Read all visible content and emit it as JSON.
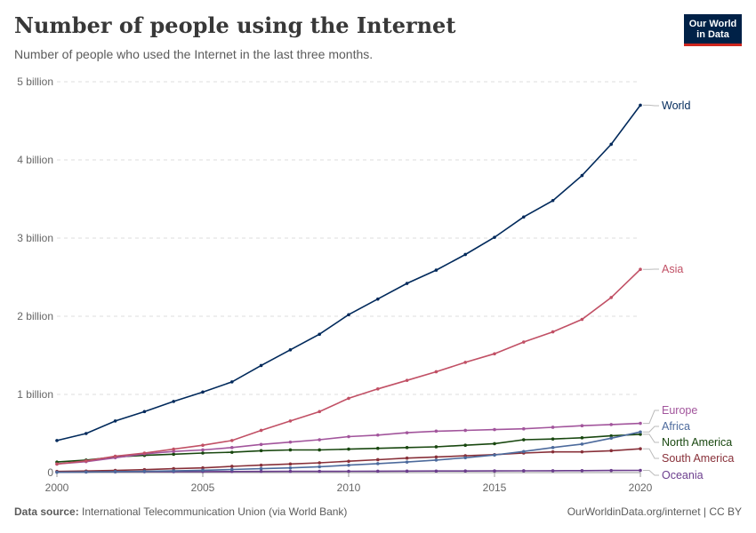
{
  "header": {
    "title": "Number of people using the Internet",
    "subtitle": "Number of people who used the Internet in the last three months."
  },
  "logo": {
    "line1": "Our World",
    "line2": "in Data"
  },
  "footer": {
    "source_label": "Data source:",
    "source_text": "International Telecommunication Union (via World Bank)",
    "right_text": "OurWorldinData.org/internet | CC BY"
  },
  "chart_data": {
    "type": "line",
    "title": "Number of people using the Internet",
    "subtitle": "Number of people who used the Internet in the last three months.",
    "x": [
      2000,
      2001,
      2002,
      2003,
      2004,
      2005,
      2006,
      2007,
      2008,
      2009,
      2010,
      2011,
      2012,
      2013,
      2014,
      2015,
      2016,
      2017,
      2018,
      2019,
      2020
    ],
    "xlim": [
      2000,
      2020
    ],
    "ylim": [
      0,
      5000000000
    ],
    "x_ticks": [
      "2000",
      "2005",
      "2010",
      "2015",
      "2020"
    ],
    "y_ticks": [
      {
        "value": 0,
        "label": "0"
      },
      {
        "value": 1000000000,
        "label": "1 billion"
      },
      {
        "value": 2000000000,
        "label": "2 billion"
      },
      {
        "value": 3000000000,
        "label": "3 billion"
      },
      {
        "value": 4000000000,
        "label": "4 billion"
      },
      {
        "value": 5000000000,
        "label": "5 billion"
      }
    ],
    "grid": "horizontal dashed",
    "legend": "right, inline labels",
    "series": [
      {
        "name": "World",
        "color": "#00295b",
        "values": [
          410000000,
          500000000,
          660000000,
          780000000,
          910000000,
          1030000000,
          1160000000,
          1370000000,
          1570000000,
          1770000000,
          2020000000,
          2220000000,
          2420000000,
          2590000000,
          2790000000,
          3010000000,
          3270000000,
          3480000000,
          3800000000,
          4200000000,
          4700000000
        ]
      },
      {
        "name": "Asia",
        "color": "#c15065",
        "values": [
          110000000,
          150000000,
          210000000,
          250000000,
          300000000,
          350000000,
          410000000,
          540000000,
          660000000,
          780000000,
          950000000,
          1070000000,
          1180000000,
          1290000000,
          1410000000,
          1520000000,
          1670000000,
          1800000000,
          1960000000,
          2240000000,
          2600000000
        ]
      },
      {
        "name": "Europe",
        "color": "#a2559c",
        "values": [
          110000000,
          140000000,
          190000000,
          240000000,
          270000000,
          290000000,
          320000000,
          360000000,
          390000000,
          420000000,
          460000000,
          480000000,
          510000000,
          530000000,
          540000000,
          550000000,
          560000000,
          580000000,
          600000000,
          615000000,
          630000000
        ]
      },
      {
        "name": "Africa",
        "color": "#4c6a9c",
        "values": [
          5000000,
          8000000,
          12000000,
          16000000,
          22000000,
          30000000,
          40000000,
          50000000,
          60000000,
          75000000,
          95000000,
          115000000,
          135000000,
          160000000,
          190000000,
          225000000,
          270000000,
          320000000,
          365000000,
          440000000,
          520000000
        ]
      },
      {
        "name": "North America",
        "color": "#18470f",
        "values": [
          135000000,
          160000000,
          200000000,
          220000000,
          235000000,
          250000000,
          260000000,
          280000000,
          290000000,
          290000000,
          300000000,
          310000000,
          320000000,
          330000000,
          350000000,
          370000000,
          420000000,
          430000000,
          445000000,
          470000000,
          490000000
        ]
      },
      {
        "name": "South America",
        "color": "#883039",
        "values": [
          15000000,
          20000000,
          28000000,
          38000000,
          50000000,
          60000000,
          80000000,
          95000000,
          110000000,
          125000000,
          145000000,
          165000000,
          185000000,
          200000000,
          215000000,
          230000000,
          250000000,
          265000000,
          265000000,
          280000000,
          305000000
        ]
      },
      {
        "name": "Oceania",
        "color": "#6b3d8d",
        "values": [
          7000000,
          8000000,
          10000000,
          11000000,
          12000000,
          13000000,
          14000000,
          15000000,
          16000000,
          16000000,
          17000000,
          18000000,
          19000000,
          20000000,
          21000000,
          22000000,
          23000000,
          24000000,
          25000000,
          27000000,
          28000000
        ]
      }
    ]
  }
}
